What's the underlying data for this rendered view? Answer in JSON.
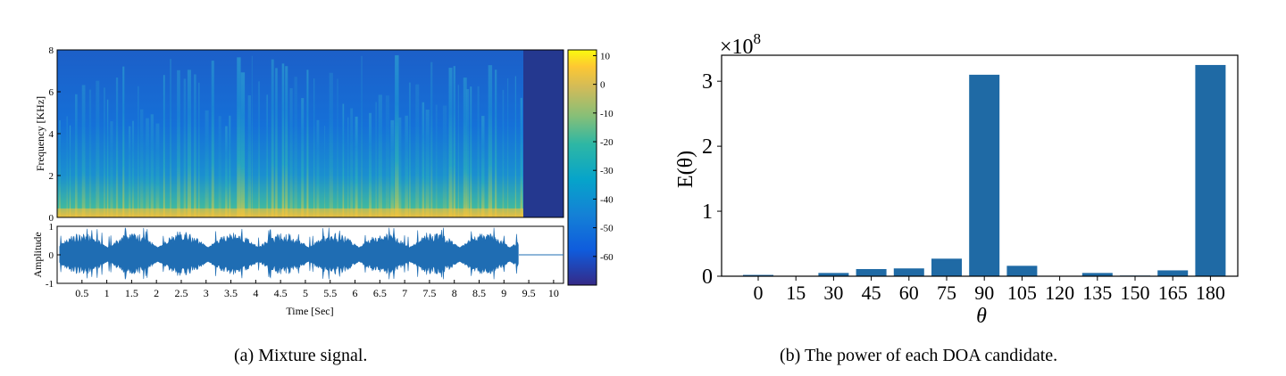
{
  "captions": {
    "a": "(a) Mixture signal.",
    "b": "(b) The power of each DOA candidate."
  },
  "chart_data": [
    {
      "type": "heatmap",
      "title": "",
      "xlabel": "",
      "ylabel": "Frequency [KHz]",
      "ylim": [
        0,
        8
      ],
      "y_ticks": [
        "0",
        "2",
        "4",
        "6",
        "8"
      ],
      "colorbar": {
        "range": [
          -70,
          12
        ],
        "ticks": [
          "10",
          "0",
          "-10",
          "-20",
          "-30",
          "-40",
          "-50",
          "-60"
        ],
        "colormap": "parula"
      },
      "colors": {
        "low": "#352a87",
        "mid": "#1fa6c5",
        "high": "#f9fb0e"
      }
    },
    {
      "type": "line",
      "xlabel": "Time [Sec]",
      "ylabel": "Amplitude",
      "xlim": [
        0,
        10.2
      ],
      "ylim": [
        -1,
        1
      ],
      "x_ticks": [
        "0.5",
        "1",
        "1.5",
        "2",
        "2.5",
        "3",
        "3.5",
        "4",
        "4.5",
        "5",
        "5.5",
        "6",
        "6.5",
        "7",
        "7.5",
        "8",
        "8.5",
        "9",
        "9.5",
        "10"
      ],
      "y_ticks": [
        "-1",
        "0",
        "1"
      ],
      "signal_end_sec": 9.3,
      "color": "#1f6db3"
    },
    {
      "type": "bar",
      "title": "",
      "xlabel": "θ",
      "ylabel": "E(θ)",
      "scale_label": "×10",
      "scale_exponent": "8",
      "categories": [
        "0",
        "15",
        "30",
        "45",
        "60",
        "75",
        "90",
        "105",
        "120",
        "135",
        "150",
        "165",
        "180"
      ],
      "values": [
        0.02,
        0.0,
        0.05,
        0.11,
        0.12,
        0.27,
        3.1,
        0.16,
        0.0,
        0.05,
        0.01,
        0.09,
        3.25
      ],
      "ylim": [
        0,
        3.4
      ],
      "y_ticks": [
        "0",
        "1",
        "2",
        "3"
      ],
      "color": "#1f6aa5"
    }
  ]
}
